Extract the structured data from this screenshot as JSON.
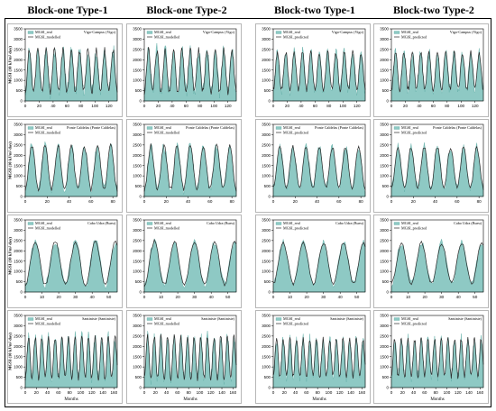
{
  "figure": {
    "columns": [
      "Block-one Type-1",
      "Block-one Type-2",
      "Block-two Type-1",
      "Block-two Type-2"
    ],
    "ylabel": "MGSI (10 kJ/m² day)",
    "xlabel": "Months",
    "legend_real": "MGSI_real",
    "legend_model": "MGSI_modelled",
    "legend_pred": "MGSI_predicted",
    "colors": {
      "area": "#8ec9c4",
      "area_stroke": "#5aa9a2",
      "line": "#2a2a2a",
      "frame": "#000000"
    },
    "yticks": [
      0,
      500,
      1000,
      1500,
      2000,
      2500,
      3000,
      3500
    ]
  },
  "chart_data": [
    {
      "type": "area",
      "row": 0,
      "col": 0,
      "title": "Vigo-Campus (Vigo)",
      "series": [
        {
          "name": "MGSI_real"
        },
        {
          "name": "MGSI_modelled"
        }
      ],
      "xlim": [
        0,
        132
      ],
      "xticks": [
        0,
        20,
        40,
        60,
        80,
        100,
        120
      ],
      "ylim": [
        0,
        3500
      ],
      "months": 132,
      "amplitude": 1000,
      "mean": 1450,
      "noise": 380,
      "seed": 11
    },
    {
      "type": "area",
      "row": 0,
      "col": 1,
      "title": "Vigo-Campus (Vigo)",
      "series": [
        {
          "name": "MGSI_real"
        },
        {
          "name": "MGSI_modelled"
        }
      ],
      "xlim": [
        0,
        132
      ],
      "xticks": [
        0,
        20,
        40,
        60,
        80,
        100,
        120
      ],
      "ylim": [
        0,
        3500
      ],
      "months": 132,
      "amplitude": 1000,
      "mean": 1450,
      "noise": 380,
      "seed": 12
    },
    {
      "type": "area",
      "row": 0,
      "col": 2,
      "title": "Vigo-Campus (Vigo)",
      "series": [
        {
          "name": "MGSI_real"
        },
        {
          "name": "MGSI_predicted"
        }
      ],
      "xlim": [
        0,
        132
      ],
      "xticks": [
        0,
        20,
        40,
        60,
        80,
        100,
        120
      ],
      "ylim": [
        0,
        3500
      ],
      "months": 132,
      "amplitude": 900,
      "mean": 1450,
      "noise": 300,
      "seed": 13
    },
    {
      "type": "area",
      "row": 0,
      "col": 3,
      "title": "Vigo-Campus (Vigo)",
      "series": [
        {
          "name": "MGSI_real"
        },
        {
          "name": "MGSI_predicted"
        }
      ],
      "xlim": [
        0,
        132
      ],
      "xticks": [
        0,
        20,
        40,
        60,
        80,
        100,
        120
      ],
      "ylim": [
        0,
        3500
      ],
      "months": 132,
      "amplitude": 900,
      "mean": 1450,
      "noise": 300,
      "seed": 14
    },
    {
      "type": "area",
      "row": 1,
      "col": 0,
      "title": "Ponte Caldelas (Ponte Caldelas)",
      "series": [
        {
          "name": "MGSI_real"
        },
        {
          "name": "MGSI_modelled"
        }
      ],
      "xlim": [
        0,
        84
      ],
      "xticks": [
        0,
        20,
        40,
        60,
        80
      ],
      "ylim": [
        0,
        3500
      ],
      "months": 84,
      "amplitude": 1050,
      "mean": 1400,
      "noise": 260,
      "seed": 21
    },
    {
      "type": "area",
      "row": 1,
      "col": 1,
      "title": "Ponte Caldelas (Ponte Caldelas)",
      "series": [
        {
          "name": "MGSI_real"
        },
        {
          "name": "MGSI_modelled"
        }
      ],
      "xlim": [
        0,
        84
      ],
      "xticks": [
        0,
        20,
        40,
        60,
        80
      ],
      "ylim": [
        0,
        3500
      ],
      "months": 84,
      "amplitude": 1050,
      "mean": 1400,
      "noise": 260,
      "seed": 22
    },
    {
      "type": "area",
      "row": 1,
      "col": 2,
      "title": "Ponte Caldelas (Ponte Caldelas)",
      "series": [
        {
          "name": "MGSI_real"
        },
        {
          "name": "MGSI_predicted"
        }
      ],
      "xlim": [
        0,
        84
      ],
      "xticks": [
        0,
        20,
        40,
        60,
        80
      ],
      "ylim": [
        0,
        3500
      ],
      "months": 84,
      "amplitude": 1000,
      "mean": 1400,
      "noise": 220,
      "seed": 23
    },
    {
      "type": "area",
      "row": 1,
      "col": 3,
      "title": "Ponte Caldelas (Ponte Caldelas)",
      "series": [
        {
          "name": "MGSI_real"
        },
        {
          "name": "MGSI_predicted"
        }
      ],
      "xlim": [
        0,
        84
      ],
      "xticks": [
        0,
        20,
        40,
        60,
        80
      ],
      "ylim": [
        0,
        3500
      ],
      "months": 84,
      "amplitude": 1000,
      "mean": 1400,
      "noise": 220,
      "seed": 24
    },
    {
      "type": "area",
      "row": 2,
      "col": 0,
      "title": "Cabo Udra (Bueu)",
      "series": [
        {
          "name": "MGSI_real"
        },
        {
          "name": "MGSI_modelled"
        }
      ],
      "xlim": [
        0,
        55
      ],
      "xticks": [
        0,
        10,
        20,
        30,
        40,
        50
      ],
      "ylim": [
        0,
        3500
      ],
      "months": 55,
      "amplitude": 1050,
      "mean": 1400,
      "noise": 200,
      "seed": 31
    },
    {
      "type": "area",
      "row": 2,
      "col": 1,
      "title": "Cabo Udra (Bueu)",
      "series": [
        {
          "name": "MGSI_real"
        },
        {
          "name": "MGSI_modelled"
        }
      ],
      "xlim": [
        0,
        55
      ],
      "xticks": [
        0,
        10,
        20,
        30,
        40,
        50
      ],
      "ylim": [
        0,
        3500
      ],
      "months": 55,
      "amplitude": 1050,
      "mean": 1400,
      "noise": 200,
      "seed": 32
    },
    {
      "type": "area",
      "row": 2,
      "col": 2,
      "title": "Cabo Udra (Bueu)",
      "series": [
        {
          "name": "MGSI_real"
        },
        {
          "name": "MGSI_predicted"
        }
      ],
      "xlim": [
        0,
        55
      ],
      "xticks": [
        0,
        10,
        20,
        30,
        40,
        50
      ],
      "ylim": [
        0,
        3500
      ],
      "months": 55,
      "amplitude": 1000,
      "mean": 1400,
      "noise": 180,
      "seed": 33
    },
    {
      "type": "area",
      "row": 2,
      "col": 3,
      "title": "Cabo Udra (Bueu)",
      "series": [
        {
          "name": "MGSI_real"
        },
        {
          "name": "MGSI_predicted"
        }
      ],
      "xlim": [
        0,
        55
      ],
      "xticks": [
        0,
        10,
        20,
        30,
        40,
        50
      ],
      "ylim": [
        0,
        3500
      ],
      "months": 55,
      "amplitude": 1000,
      "mean": 1400,
      "noise": 180,
      "seed": 34
    },
    {
      "type": "area",
      "row": 3,
      "col": 0,
      "title": "Santiniste (Santiniste)",
      "series": [
        {
          "name": "MGSI_real"
        },
        {
          "name": "MGSI_modelled"
        }
      ],
      "xlim": [
        0,
        166
      ],
      "xticks": [
        0,
        20,
        40,
        60,
        80,
        100,
        120,
        140,
        160
      ],
      "ylim": [
        0,
        3500
      ],
      "months": 166,
      "amplitude": 1000,
      "mean": 1450,
      "noise": 330,
      "seed": 41
    },
    {
      "type": "area",
      "row": 3,
      "col": 1,
      "title": "Santiniste (Santiniste)",
      "series": [
        {
          "name": "MGSI_real"
        },
        {
          "name": "MGSI_modelled"
        }
      ],
      "xlim": [
        0,
        166
      ],
      "xticks": [
        0,
        20,
        40,
        60,
        80,
        100,
        120,
        140,
        160
      ],
      "ylim": [
        0,
        3500
      ],
      "months": 166,
      "amplitude": 1000,
      "mean": 1450,
      "noise": 330,
      "seed": 42
    },
    {
      "type": "area",
      "row": 3,
      "col": 2,
      "title": "Santiniste (Santiniste)",
      "series": [
        {
          "name": "MGSI_real"
        },
        {
          "name": "MGSI_predicted"
        }
      ],
      "xlim": [
        0,
        166
      ],
      "xticks": [
        0,
        20,
        40,
        60,
        80,
        100,
        120,
        140,
        160
      ],
      "ylim": [
        0,
        3500
      ],
      "months": 166,
      "amplitude": 900,
      "mean": 1450,
      "noise": 280,
      "seed": 43
    },
    {
      "type": "area",
      "row": 3,
      "col": 3,
      "title": "Santiniste (Santiniste)",
      "series": [
        {
          "name": "MGSI_real"
        },
        {
          "name": "MGSI_predicted"
        }
      ],
      "xlim": [
        0,
        166
      ],
      "xticks": [
        0,
        20,
        40,
        60,
        80,
        100,
        120,
        140,
        160
      ],
      "ylim": [
        0,
        3500
      ],
      "months": 166,
      "amplitude": 900,
      "mean": 1450,
      "noise": 280,
      "seed": 44
    }
  ]
}
